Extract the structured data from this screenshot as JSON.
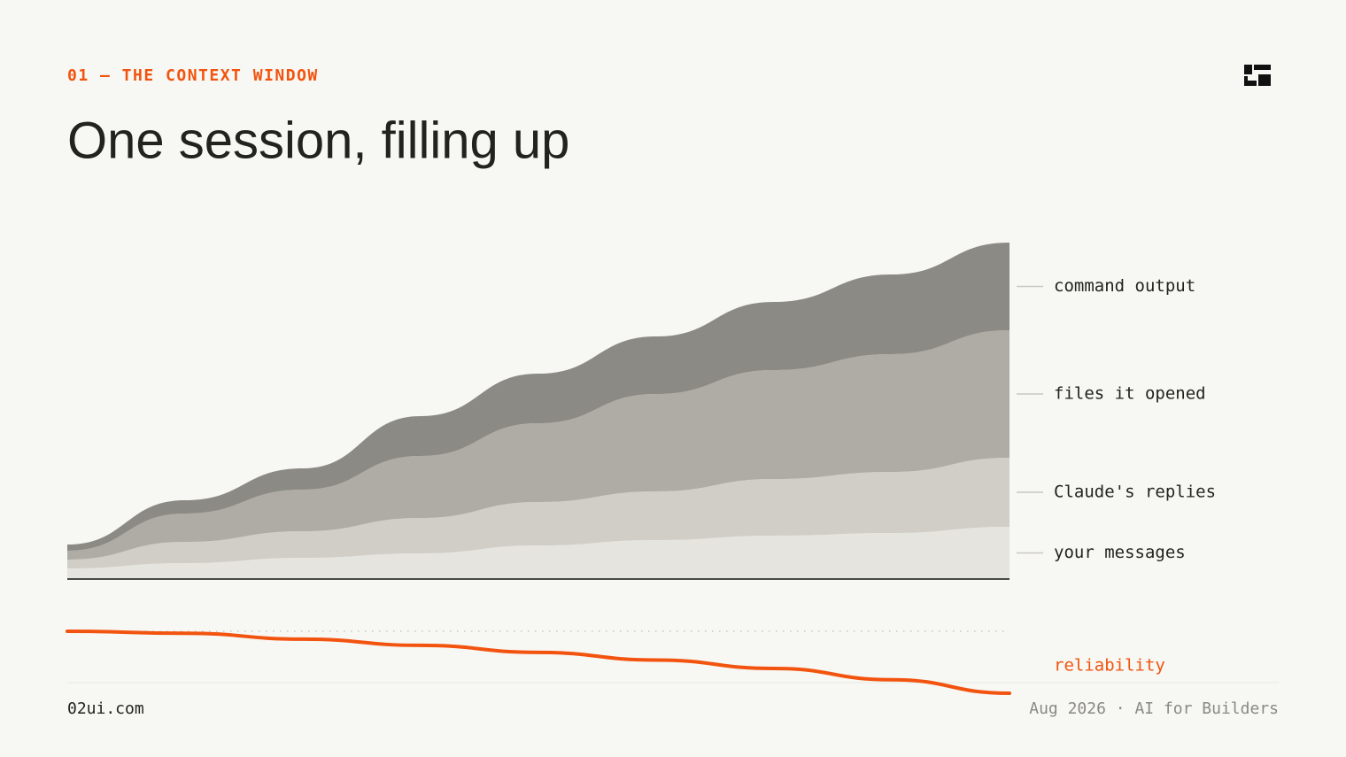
{
  "header": {
    "eyebrow": "01 — THE CONTEXT WINDOW",
    "title": "One session, filling up"
  },
  "chart_data": [
    {
      "type": "area",
      "stacked": true,
      "ylim": [
        0,
        400
      ],
      "series": [
        {
          "name": "your messages",
          "color": "#e5e4df",
          "values": [
            12,
            18,
            24,
            29,
            38,
            44,
            49,
            52,
            59
          ]
        },
        {
          "name": "Claude's replies",
          "color": "#d0cec6",
          "values": [
            10,
            24,
            30,
            40,
            49,
            55,
            64,
            69,
            78
          ]
        },
        {
          "name": "files it opened",
          "color": "#aeaca4",
          "values": [
            10,
            32,
            47,
            70,
            89,
            110,
            123,
            133,
            144
          ]
        },
        {
          "name": "command output",
          "color": "#8b8a84",
          "values": [
            7,
            15,
            24,
            45,
            56,
            65,
            77,
            90,
            99
          ]
        }
      ]
    },
    {
      "type": "line",
      "ylim": [
        78,
        100
      ],
      "series": [
        {
          "name": "reliability",
          "color": "#f2540f",
          "values": [
            100,
            99.3,
            97.2,
            95,
            92.5,
            89.8,
            86.8,
            82.8,
            78
          ]
        }
      ]
    }
  ],
  "footer": {
    "left": "02ui.com",
    "right": "Aug 2026 · AI for Builders"
  }
}
